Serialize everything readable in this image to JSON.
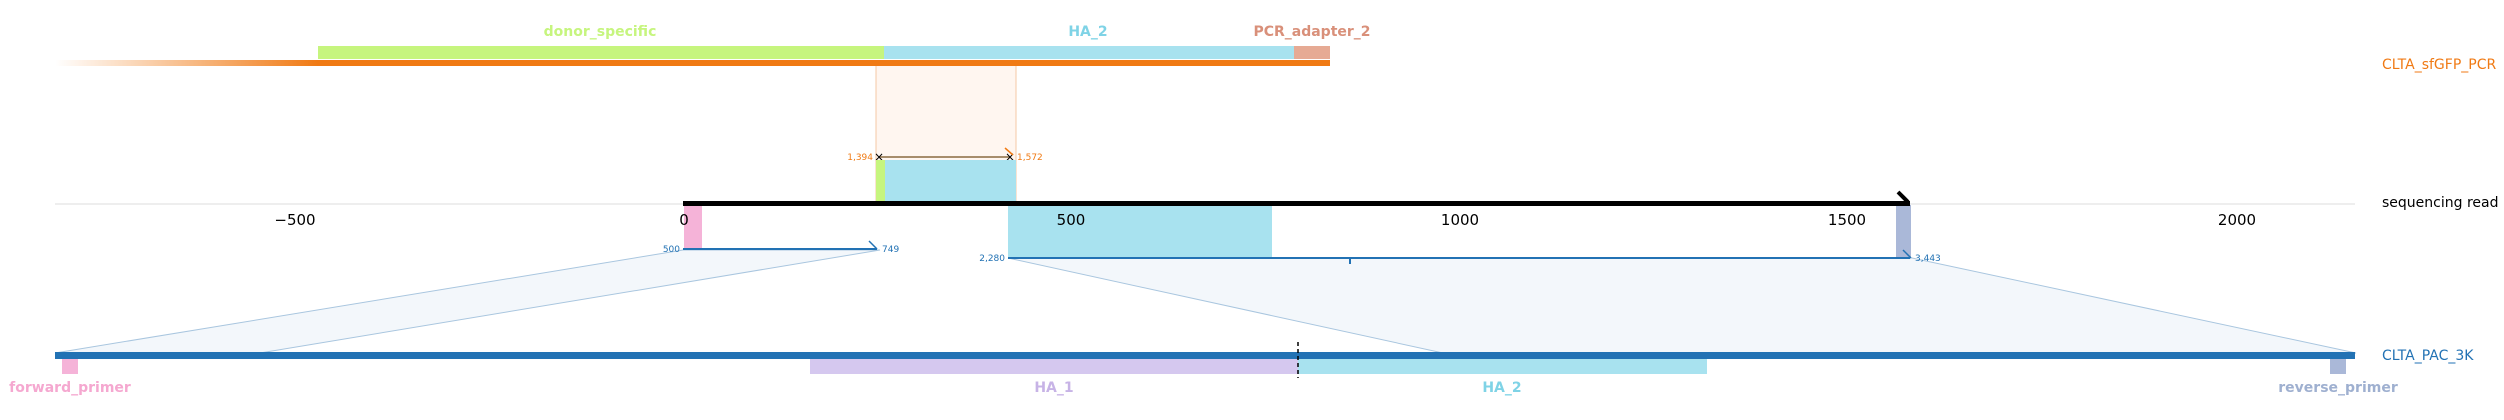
{
  "colors": {
    "top_ref": "#f07a14",
    "bottom_ref": "#2272b4",
    "read": "#000000",
    "donor_specific": "#c6f57e",
    "ha_2": "#a8e2ef",
    "pcr_adapter_2": "#e0a08a",
    "forward_primer": "#f5b3d8",
    "ha_1": "#d5c8ef",
    "reverse_primer": "#aab8d8",
    "axis": "#cccccc",
    "alignment_fill": "#f3f7fb"
  },
  "top_reference": {
    "name": "CLTA_sfGFP_PCR"
  },
  "bottom_reference": {
    "name": "CLTA_PAC_3K"
  },
  "read": {
    "name": "sequencing read"
  },
  "axis": {
    "ticks": [
      "−500",
      "0",
      "500",
      "1000",
      "1500",
      "2000"
    ]
  },
  "top_features": [
    {
      "name": "donor_specific",
      "color": "#c6f57e"
    },
    {
      "name": "HA_2",
      "color": "#7fd3e6"
    },
    {
      "name": "PCR_adapter_2",
      "color": "#d9907a"
    }
  ],
  "bottom_features": [
    {
      "name": "forward_primer",
      "color": "#f5a8d0"
    },
    {
      "name": "HA_1",
      "color": "#c7b3e6"
    },
    {
      "name": "HA_2",
      "color": "#7fd3e6"
    },
    {
      "name": "reverse_primer",
      "color": "#9fb0d0"
    }
  ],
  "alignments": {
    "top": {
      "ref_start": "1,394",
      "ref_end": "1,572"
    },
    "bottom_left": {
      "ref_start": "500",
      "ref_end": "749"
    },
    "bottom_right": {
      "ref_start": "2,280",
      "ref_end": "3,443"
    }
  }
}
